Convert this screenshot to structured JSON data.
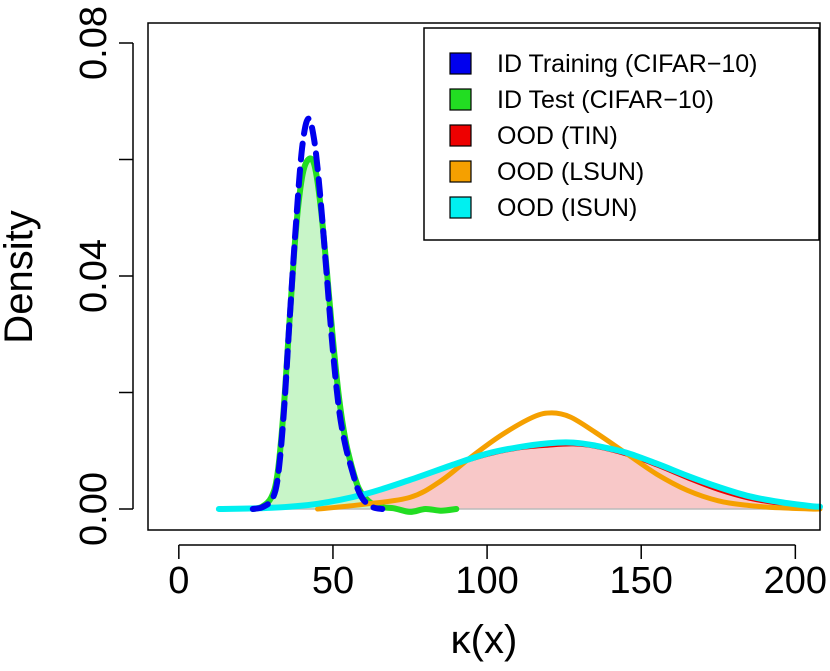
{
  "chart_data": {
    "type": "area",
    "title": "",
    "xlabel": "κ(x)",
    "ylabel": "Density",
    "xlim": [
      -10,
      208
    ],
    "ylim": [
      0,
      0.085
    ],
    "x_ticks": [
      0,
      50,
      100,
      150,
      200
    ],
    "x_tick_labels": [
      "0",
      "50",
      "100",
      "150",
      "200"
    ],
    "y_ticks": [
      0.0,
      0.02,
      0.04,
      0.06,
      0.08
    ],
    "y_tick_labels": [
      "0.00",
      "",
      "0.04",
      "",
      "0.08"
    ],
    "legend_position": "top-right",
    "series": [
      {
        "name": "ID Training (CIFAR−10)",
        "color": "#0000ee",
        "line_style": "dashed",
        "filled": false,
        "points": [
          [
            24,
            0
          ],
          [
            27,
            0.0003
          ],
          [
            30,
            0.0015
          ],
          [
            32,
            0.005
          ],
          [
            34,
            0.016
          ],
          [
            36,
            0.033
          ],
          [
            38,
            0.049
          ],
          [
            40,
            0.062
          ],
          [
            42,
            0.067
          ],
          [
            44,
            0.063
          ],
          [
            46,
            0.053
          ],
          [
            48,
            0.04
          ],
          [
            50,
            0.027
          ],
          [
            52,
            0.017
          ],
          [
            54,
            0.011
          ],
          [
            56,
            0.007
          ],
          [
            58,
            0.0035
          ],
          [
            60,
            0.0015
          ],
          [
            63,
            0.0003
          ],
          [
            66,
            0
          ]
        ]
      },
      {
        "name": "ID Test (CIFAR−10)",
        "color": "#22dd22",
        "fill": "#c8f5c8",
        "line_style": "solid",
        "filled": true,
        "points": [
          [
            24,
            0
          ],
          [
            27,
            0.0004
          ],
          [
            30,
            0.002
          ],
          [
            32,
            0.006
          ],
          [
            34,
            0.017
          ],
          [
            36,
            0.033
          ],
          [
            38,
            0.048
          ],
          [
            40,
            0.057
          ],
          [
            42,
            0.06
          ],
          [
            44,
            0.059
          ],
          [
            46,
            0.052
          ],
          [
            48,
            0.041
          ],
          [
            50,
            0.029
          ],
          [
            52,
            0.019
          ],
          [
            54,
            0.012
          ],
          [
            56,
            0.0075
          ],
          [
            58,
            0.004
          ],
          [
            60,
            0.0022
          ],
          [
            63,
            0.0008
          ],
          [
            66,
            0.0003
          ],
          [
            70,
            0.0001
          ],
          [
            75,
            -0.0005
          ],
          [
            80,
            0
          ],
          [
            85,
            -0.0003
          ],
          [
            90,
            0
          ]
        ]
      },
      {
        "name": "OOD (TIN)",
        "color": "#ee0000",
        "fill": "#f8c8c8",
        "line_style": "solid",
        "filled": true,
        "points": [
          [
            25,
            0
          ],
          [
            40,
            0.0006
          ],
          [
            55,
            0.002
          ],
          [
            70,
            0.0042
          ],
          [
            85,
            0.0068
          ],
          [
            100,
            0.0092
          ],
          [
            110,
            0.0103
          ],
          [
            120,
            0.0108
          ],
          [
            128,
            0.011
          ],
          [
            135,
            0.0106
          ],
          [
            145,
            0.0093
          ],
          [
            155,
            0.0074
          ],
          [
            165,
            0.0052
          ],
          [
            175,
            0.0032
          ],
          [
            185,
            0.0017
          ],
          [
            195,
            0.0008
          ],
          [
            205,
            0.0003
          ],
          [
            208,
            0.0002
          ]
        ]
      },
      {
        "name": "OOD (LSUN)",
        "color": "#f5a000",
        "fill": "none",
        "line_style": "solid",
        "filled": false,
        "points": [
          [
            45,
            0
          ],
          [
            60,
            0.0008
          ],
          [
            75,
            0.002
          ],
          [
            85,
            0.0048
          ],
          [
            95,
            0.009
          ],
          [
            105,
            0.0128
          ],
          [
            115,
            0.0158
          ],
          [
            121,
            0.0165
          ],
          [
            127,
            0.0158
          ],
          [
            135,
            0.0132
          ],
          [
            145,
            0.0096
          ],
          [
            155,
            0.006
          ],
          [
            165,
            0.0032
          ],
          [
            175,
            0.0014
          ],
          [
            185,
            0.0006
          ],
          [
            195,
            0.0002
          ],
          [
            205,
            0
          ],
          [
            208,
            0
          ]
        ]
      },
      {
        "name": "OOD (ISUN)",
        "color": "#00f0f0",
        "fill": "none",
        "line_style": "solid",
        "filled": false,
        "points": [
          [
            13,
            0
          ],
          [
            30,
            0.0002
          ],
          [
            45,
            0.0009
          ],
          [
            60,
            0.0025
          ],
          [
            75,
            0.005
          ],
          [
            90,
            0.0078
          ],
          [
            100,
            0.0095
          ],
          [
            110,
            0.0106
          ],
          [
            120,
            0.0113
          ],
          [
            128,
            0.0114
          ],
          [
            135,
            0.0109
          ],
          [
            145,
            0.0097
          ],
          [
            155,
            0.0078
          ],
          [
            165,
            0.0057
          ],
          [
            175,
            0.0038
          ],
          [
            185,
            0.0022
          ],
          [
            195,
            0.0012
          ],
          [
            205,
            0.0005
          ],
          [
            208,
            0.0004
          ]
        ]
      }
    ]
  }
}
